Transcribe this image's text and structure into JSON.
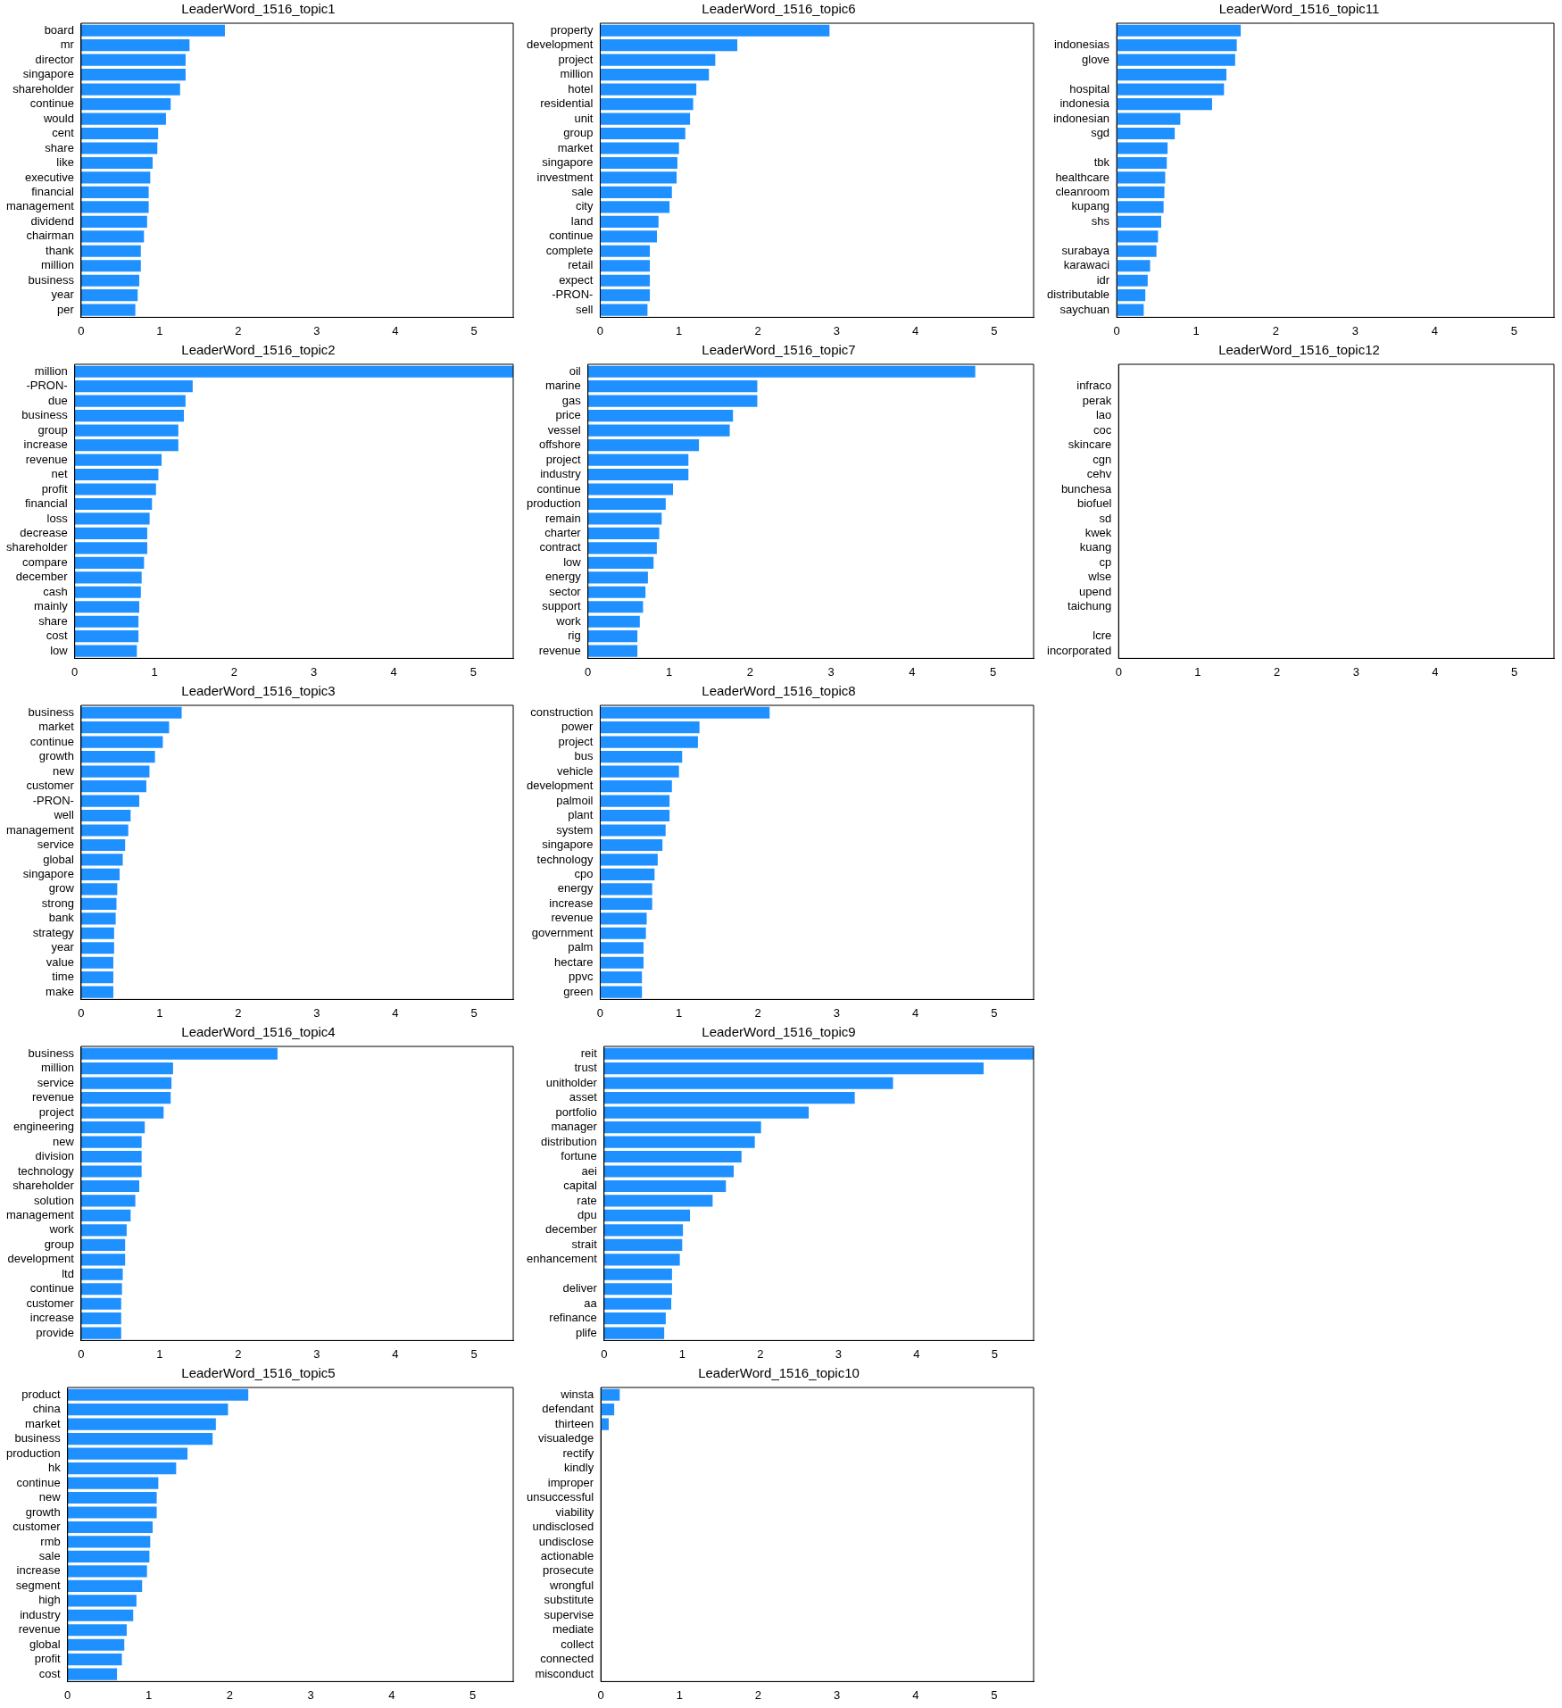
{
  "chart_data": [
    {
      "type": "bar",
      "orientation": "horizontal",
      "title": "LeaderWord_1516_topic1",
      "categories": [
        "board",
        "mr",
        "director",
        "singapore",
        "shareholder",
        "continue",
        "would",
        "cent",
        "share",
        "like",
        "executive",
        "financial",
        "management",
        "dividend",
        "chairman",
        "thank",
        "million",
        "business",
        "year",
        "per"
      ],
      "values": [
        1.83,
        1.38,
        1.33,
        1.33,
        1.26,
        1.14,
        1.08,
        0.98,
        0.97,
        0.91,
        0.88,
        0.86,
        0.86,
        0.84,
        0.8,
        0.76,
        0.76,
        0.74,
        0.72,
        0.69
      ],
      "color": "#1e90ff",
      "xlim": [
        0,
        5.5
      ],
      "xticks": [
        0,
        1,
        2,
        3,
        4,
        5
      ],
      "grid": false
    },
    {
      "type": "bar",
      "orientation": "horizontal",
      "title": "LeaderWord_1516_topic6",
      "categories": [
        "property",
        "development",
        "project",
        "million",
        "hotel",
        "residential",
        "unit",
        "group",
        "market",
        "singapore",
        "investment",
        "sale",
        "city",
        "land",
        "continue",
        "complete",
        "retail",
        "expect",
        "-PRON-",
        "sell"
      ],
      "values": [
        2.91,
        1.74,
        1.46,
        1.38,
        1.22,
        1.18,
        1.14,
        1.08,
        1.0,
        0.98,
        0.97,
        0.91,
        0.88,
        0.74,
        0.72,
        0.63,
        0.63,
        0.63,
        0.63,
        0.6
      ],
      "color": "#1e90ff",
      "xlim": [
        0,
        5.5
      ],
      "xticks": [
        0,
        1,
        2,
        3,
        4,
        5
      ],
      "grid": false
    },
    {
      "type": "bar",
      "orientation": "horizontal",
      "title": "LeaderWord_1516_topic11",
      "categories": [
        null,
        "indonesias",
        "glove",
        null,
        "hospital",
        "indonesia",
        "indonesian",
        "sgd",
        null,
        "tbk",
        "healthcare",
        "cleanroom",
        "kupang",
        "shs",
        null,
        "surabaya",
        "karawaci",
        "idr",
        "distributable",
        "saychuan"
      ],
      "values": [
        1.56,
        1.51,
        1.49,
        1.38,
        1.35,
        1.2,
        0.8,
        0.73,
        0.64,
        0.63,
        0.61,
        0.6,
        0.59,
        0.56,
        0.52,
        0.5,
        0.42,
        0.39,
        0.36,
        0.34
      ],
      "color": "#1e90ff",
      "xlim": [
        0,
        5.5
      ],
      "xticks": [
        0,
        1,
        2,
        3,
        4,
        5
      ],
      "grid": false
    },
    {
      "type": "bar",
      "orientation": "horizontal",
      "title": "LeaderWord_1516_topic2",
      "categories": [
        "million",
        "-PRON-",
        "due",
        "business",
        "group",
        "increase",
        "revenue",
        "net",
        "profit",
        "financial",
        "loss",
        "decrease",
        "shareholder",
        "compare",
        "december",
        "cash",
        "mainly",
        "share",
        "cost",
        "low"
      ],
      "values": [
        5.5,
        1.48,
        1.39,
        1.37,
        1.3,
        1.3,
        1.09,
        1.05,
        1.02,
        0.97,
        0.94,
        0.91,
        0.91,
        0.87,
        0.84,
        0.83,
        0.81,
        0.8,
        0.8,
        0.78
      ],
      "color": "#1e90ff",
      "xlim": [
        0,
        5.5
      ],
      "xticks": [
        0,
        1,
        2,
        3,
        4,
        5
      ],
      "grid": false
    },
    {
      "type": "bar",
      "orientation": "horizontal",
      "title": "LeaderWord_1516_topic7",
      "categories": [
        "oil",
        "marine",
        "gas",
        "price",
        "vessel",
        "offshore",
        "project",
        "industry",
        "continue",
        "production",
        "remain",
        "charter",
        "contract",
        "low",
        "energy",
        "sector",
        "support",
        "work",
        "rig",
        "revenue"
      ],
      "values": [
        4.78,
        2.09,
        2.09,
        1.79,
        1.75,
        1.37,
        1.24,
        1.24,
        1.05,
        0.96,
        0.91,
        0.88,
        0.85,
        0.81,
        0.74,
        0.71,
        0.68,
        0.64,
        0.61,
        0.61
      ],
      "color": "#1e90ff",
      "xlim": [
        0,
        5.5
      ],
      "xticks": [
        0,
        1,
        2,
        3,
        4,
        5
      ],
      "grid": false
    },
    {
      "type": "bar",
      "orientation": "horizontal",
      "title": "LeaderWord_1516_topic12",
      "categories": [
        null,
        "infraco",
        "perak",
        "lao",
        "coc",
        "skincare",
        "cgn",
        "cehv",
        "bunchesa",
        "biofuel",
        "sd",
        "kwek",
        "kuang",
        "cp",
        "wlse",
        "upend",
        "taichung",
        null,
        "lcre",
        "incorporated"
      ],
      "values": [
        0,
        0,
        0,
        0,
        0,
        0,
        0,
        0,
        0,
        0,
        0,
        0,
        0,
        0,
        0,
        0,
        0,
        0,
        0,
        0
      ],
      "color": "#1e90ff",
      "xlim": [
        0,
        5.5
      ],
      "xticks": [
        0,
        1,
        2,
        3,
        4,
        5
      ],
      "grid": false
    },
    {
      "type": "bar",
      "orientation": "horizontal",
      "title": "LeaderWord_1516_topic3",
      "categories": [
        "business",
        "market",
        "continue",
        "growth",
        "new",
        "customer",
        "-PRON-",
        "well",
        "management",
        "service",
        "global",
        "singapore",
        "grow",
        "strong",
        "bank",
        "strategy",
        "year",
        "value",
        "time",
        "make"
      ],
      "values": [
        1.28,
        1.12,
        1.04,
        0.94,
        0.87,
        0.83,
        0.74,
        0.63,
        0.6,
        0.56,
        0.53,
        0.49,
        0.46,
        0.45,
        0.44,
        0.42,
        0.42,
        0.41,
        0.41,
        0.41
      ],
      "color": "#1e90ff",
      "xlim": [
        0,
        5.5
      ],
      "xticks": [
        0,
        1,
        2,
        3,
        4,
        5
      ],
      "grid": false
    },
    {
      "type": "bar",
      "orientation": "horizontal",
      "title": "LeaderWord_1516_topic8",
      "categories": [
        "construction",
        "power",
        "project",
        "bus",
        "vehicle",
        "development",
        "palmoil",
        "plant",
        "system",
        "singapore",
        "technology",
        "cpo",
        "energy",
        "increase",
        "revenue",
        "government",
        "palm",
        "hectare",
        "ppvc",
        "green"
      ],
      "values": [
        2.15,
        1.26,
        1.24,
        1.04,
        1.0,
        0.91,
        0.88,
        0.88,
        0.83,
        0.79,
        0.73,
        0.69,
        0.66,
        0.66,
        0.59,
        0.58,
        0.55,
        0.55,
        0.53,
        0.53
      ],
      "color": "#1e90ff",
      "xlim": [
        0,
        5.5
      ],
      "xticks": [
        0,
        1,
        2,
        3,
        4,
        5
      ],
      "grid": false
    },
    {
      "type": "bar",
      "orientation": "horizontal",
      "title": "LeaderWord_1516_topic4",
      "categories": [
        "business",
        "million",
        "service",
        "revenue",
        "project",
        "engineering",
        "new",
        "division",
        "technology",
        "shareholder",
        "solution",
        "management",
        "work",
        "group",
        "development",
        "ltd",
        "continue",
        "customer",
        "increase",
        "provide"
      ],
      "values": [
        2.5,
        1.17,
        1.15,
        1.14,
        1.05,
        0.81,
        0.77,
        0.77,
        0.77,
        0.74,
        0.69,
        0.63,
        0.58,
        0.56,
        0.56,
        0.53,
        0.52,
        0.51,
        0.51,
        0.51
      ],
      "color": "#1e90ff",
      "xlim": [
        0,
        5.5
      ],
      "xticks": [
        0,
        1,
        2,
        3,
        4,
        5
      ],
      "grid": false
    },
    {
      "type": "bar",
      "orientation": "horizontal",
      "title": "LeaderWord_1516_topic9",
      "categories": [
        "reit",
        "trust",
        "unitholder",
        "asset",
        "portfolio",
        "manager",
        "distribution",
        "fortune",
        "aei",
        "capital",
        "rate",
        "dpu",
        "december",
        "strait",
        "enhancement",
        null,
        "deliver",
        "aa",
        "refinance",
        "plife"
      ],
      "values": [
        5.5,
        4.86,
        3.7,
        3.21,
        2.62,
        2.01,
        1.93,
        1.76,
        1.66,
        1.56,
        1.39,
        1.1,
        1.01,
        1.0,
        0.97,
        0.87,
        0.87,
        0.86,
        0.79,
        0.77
      ],
      "color": "#1e90ff",
      "xlim": [
        0,
        5.5
      ],
      "xticks": [
        0,
        1,
        2,
        3,
        4,
        5
      ],
      "grid": false
    },
    {
      "type": "bar",
      "orientation": "horizontal",
      "title": "LeaderWord_1516_topic5",
      "categories": [
        "product",
        "china",
        "market",
        "business",
        "production",
        "hk",
        "continue",
        "new",
        "growth",
        "customer",
        "rmb",
        "sale",
        "increase",
        "segment",
        "high",
        "industry",
        "revenue",
        "global",
        "profit",
        "cost"
      ],
      "values": [
        2.23,
        1.98,
        1.83,
        1.79,
        1.48,
        1.34,
        1.12,
        1.1,
        1.1,
        1.05,
        1.02,
        1.01,
        0.98,
        0.92,
        0.85,
        0.81,
        0.73,
        0.7,
        0.67,
        0.61
      ],
      "color": "#1e90ff",
      "xlim": [
        0,
        5.5
      ],
      "xticks": [
        0,
        1,
        2,
        3,
        4,
        5
      ],
      "grid": false
    },
    {
      "type": "bar",
      "orientation": "horizontal",
      "title": "LeaderWord_1516_topic10",
      "categories": [
        "winsta",
        "defendant",
        "thirteen",
        "visualedge",
        "rectify",
        "kindly",
        "improper",
        "unsuccessful",
        "viability",
        "undisclosed",
        "undisclose",
        "actionable",
        "prosecute",
        "wrongful",
        "substitute",
        "supervise",
        "mediate",
        "collect",
        "connected",
        "misconduct"
      ],
      "values": [
        0.24,
        0.17,
        0.1,
        0,
        0,
        0,
        0,
        0,
        0,
        0,
        0,
        0,
        0,
        0,
        0,
        0,
        0,
        0,
        0,
        0
      ],
      "color": "#1e90ff",
      "xlim": [
        0,
        5.5
      ],
      "xticks": [
        0,
        1,
        2,
        3,
        4,
        5
      ],
      "grid": false
    }
  ]
}
